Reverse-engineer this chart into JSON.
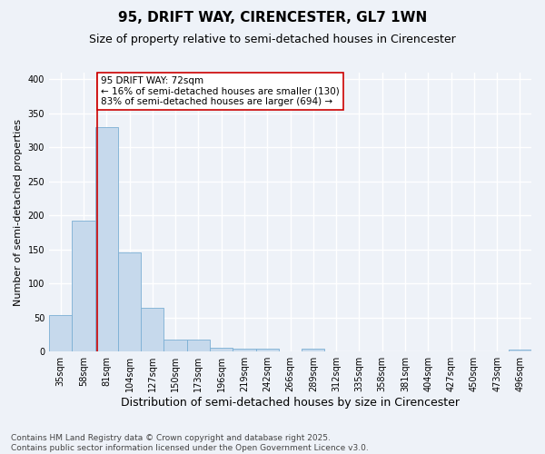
{
  "title": "95, DRIFT WAY, CIRENCESTER, GL7 1WN",
  "subtitle": "Size of property relative to semi-detached houses in Cirencester",
  "xlabel": "Distribution of semi-detached houses by size in Cirencester",
  "ylabel": "Number of semi-detached properties",
  "bin_labels": [
    "35sqm",
    "58sqm",
    "81sqm",
    "104sqm",
    "127sqm",
    "150sqm",
    "173sqm",
    "196sqm",
    "219sqm",
    "242sqm",
    "266sqm",
    "289sqm",
    "312sqm",
    "335sqm",
    "358sqm",
    "381sqm",
    "404sqm",
    "427sqm",
    "450sqm",
    "473sqm",
    "496sqm"
  ],
  "bar_values": [
    53,
    193,
    330,
    146,
    65,
    18,
    17,
    6,
    4,
    4,
    0,
    4,
    0,
    0,
    0,
    0,
    0,
    0,
    0,
    0,
    3
  ],
  "bar_color": "#c6d9ec",
  "bar_edge_color": "#7bafd4",
  "vline_color": "#cc0000",
  "annotation_text": "95 DRIFT WAY: 72sqm\n← 16% of semi-detached houses are smaller (130)\n83% of semi-detached houses are larger (694) →",
  "annotation_box_color": "#ffffff",
  "annotation_box_edge": "#cc0000",
  "ylim": [
    0,
    410
  ],
  "yticks": [
    0,
    50,
    100,
    150,
    200,
    250,
    300,
    350,
    400
  ],
  "footer_text": "Contains HM Land Registry data © Crown copyright and database right 2025.\nContains public sector information licensed under the Open Government Licence v3.0.",
  "bg_color": "#eef2f8",
  "grid_color": "#ffffff",
  "title_fontsize": 11,
  "subtitle_fontsize": 9,
  "xlabel_fontsize": 9,
  "ylabel_fontsize": 8,
  "tick_fontsize": 7,
  "annotation_fontsize": 7.5,
  "footer_fontsize": 6.5
}
